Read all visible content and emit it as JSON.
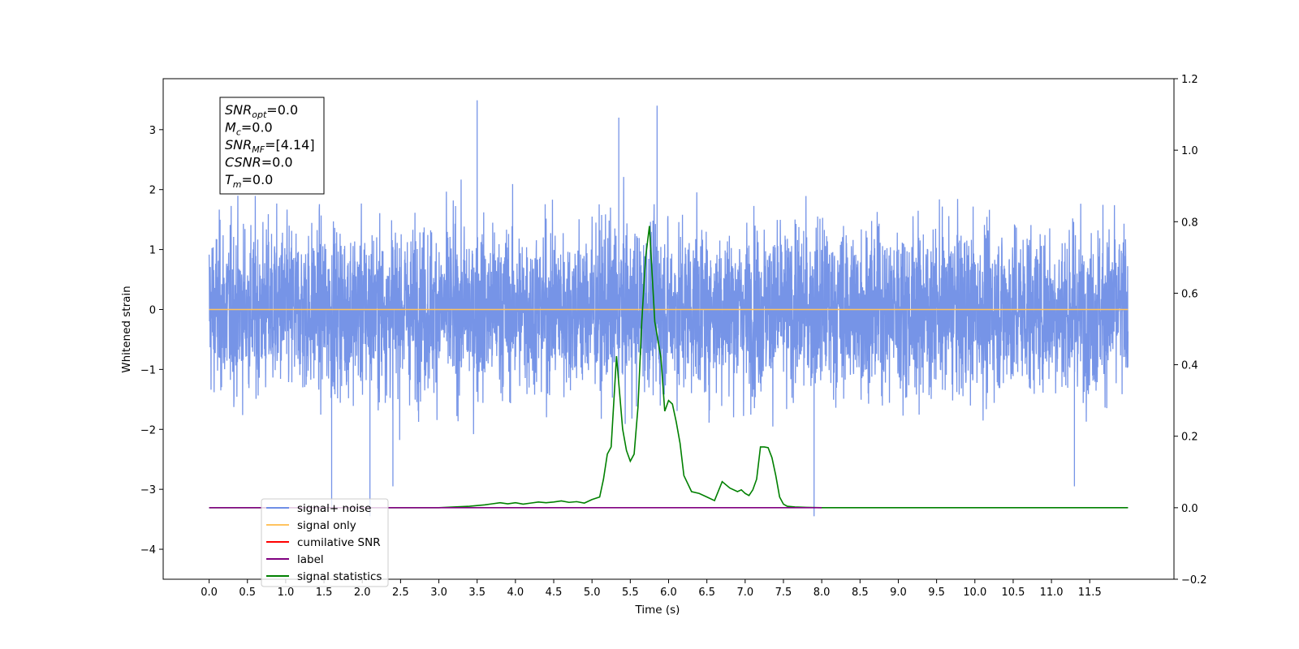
{
  "chart_data": {
    "type": "line",
    "xlabel": "Time (s)",
    "ylabel": "Whitened strain",
    "xlim": [
      -0.6,
      12.6
    ],
    "ylim": [
      -4.5,
      3.85
    ],
    "y2lim": [
      -0.2,
      1.2
    ],
    "x_ticks": [
      "0.0",
      "0.5",
      "1.0",
      "1.5",
      "2.0",
      "2.5",
      "3.0",
      "3.5",
      "4.0",
      "4.5",
      "5.0",
      "5.5",
      "6.0",
      "6.5",
      "7.0",
      "7.5",
      "8.0",
      "8.5",
      "9.0",
      "9.5",
      "10.0",
      "10.5",
      "11.0",
      "11.5"
    ],
    "y_ticks": [
      "3",
      "2",
      "1",
      "0",
      "−1",
      "−2",
      "−3",
      "−4"
    ],
    "y2_ticks": [
      "1.2",
      "1.0",
      "0.8",
      "0.6",
      "0.4",
      "0.2",
      "0.0",
      "−0.2"
    ],
    "legend": {
      "placement": "lower-left",
      "entries": [
        {
          "label": "signal+ noise",
          "color": "#6f8ee6"
        },
        {
          "label": "signal only",
          "color": "#ffc35f"
        },
        {
          "label": "cumilative SNR",
          "color": "#ff0000"
        },
        {
          "label": "label",
          "color": "#800080"
        },
        {
          "label": "signal statistics",
          "color": "#008000"
        }
      ]
    },
    "series": [
      {
        "name": "signal+ noise",
        "axis": "left",
        "color": "#6f8ee6",
        "kind": "noise",
        "x_range": [
          0.0,
          12.0
        ],
        "typical_min": -1.4,
        "typical_max": 1.6,
        "max": 3.49,
        "min": -3.45
      },
      {
        "name": "signal only",
        "axis": "left",
        "color": "#ffc35f",
        "x": [
          0.0,
          12.0
        ],
        "y": [
          0.0,
          0.0
        ]
      },
      {
        "name": "label",
        "axis": "right",
        "color": "#800080",
        "x": [
          0.0,
          8.0
        ],
        "y": [
          0.0,
          0.0
        ]
      },
      {
        "name": "signal statistics",
        "axis": "right",
        "color": "#008000",
        "x": [
          0.0,
          2.5,
          3.0,
          3.2,
          3.4,
          3.6,
          3.7,
          3.8,
          3.9,
          4.0,
          4.1,
          4.2,
          4.3,
          4.4,
          4.5,
          4.6,
          4.7,
          4.8,
          4.9,
          5.0,
          5.1,
          5.15,
          5.2,
          5.25,
          5.32,
          5.4,
          5.45,
          5.5,
          5.55,
          5.6,
          5.65,
          5.7,
          5.75,
          5.82,
          5.9,
          5.95,
          6.0,
          6.05,
          6.1,
          6.15,
          6.2,
          6.3,
          6.4,
          6.5,
          6.6,
          6.7,
          6.8,
          6.9,
          6.95,
          7.0,
          7.05,
          7.1,
          7.15,
          7.2,
          7.25,
          7.3,
          7.35,
          7.4,
          7.45,
          7.5,
          7.55,
          7.65,
          7.8,
          8.0,
          8.5,
          9.0,
          12.0
        ],
        "y": [
          0.0,
          0.0,
          0.0,
          0.002,
          0.004,
          0.008,
          0.011,
          0.014,
          0.011,
          0.014,
          0.01,
          0.013,
          0.016,
          0.014,
          0.016,
          0.019,
          0.015,
          0.017,
          0.013,
          0.023,
          0.03,
          0.08,
          0.15,
          0.17,
          0.424,
          0.22,
          0.16,
          0.13,
          0.15,
          0.28,
          0.52,
          0.7,
          0.788,
          0.52,
          0.42,
          0.27,
          0.3,
          0.29,
          0.24,
          0.18,
          0.09,
          0.045,
          0.04,
          0.03,
          0.02,
          0.073,
          0.055,
          0.045,
          0.05,
          0.04,
          0.034,
          0.05,
          0.08,
          0.17,
          0.17,
          0.168,
          0.14,
          0.09,
          0.03,
          0.01,
          0.004,
          0.002,
          0.001,
          0.0,
          0.0,
          0.0,
          0.0
        ]
      }
    ],
    "annotation": {
      "lines": [
        {
          "base": "SNR",
          "sub": "opt",
          "value": "=0.0"
        },
        {
          "base": "M",
          "sub": "c",
          "value": "=0.0"
        },
        {
          "base": "SNR",
          "sub": "MF",
          "value": "=[4.14]"
        },
        {
          "base": "CSNR",
          "sub": "",
          "value": "=0.0"
        },
        {
          "base": "T",
          "sub": "m",
          "value": "=0.0"
        }
      ]
    }
  }
}
